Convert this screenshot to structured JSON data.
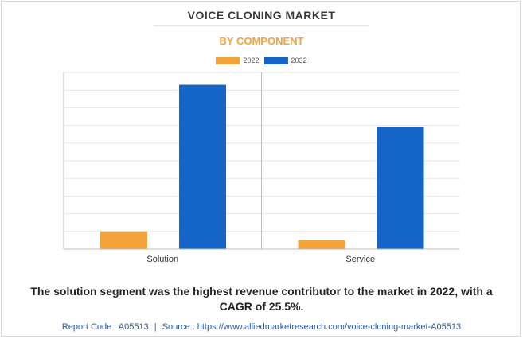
{
  "header": {
    "title": "VOICE CLONING MARKET",
    "subtitle": "BY COMPONENT"
  },
  "colors": {
    "2022": "#f2a33a",
    "2032": "#1565c8",
    "grid": "#e6e6e6",
    "axis": "#bdbdbd"
  },
  "chart_data": {
    "type": "bar",
    "categories": [
      "Solution",
      "Service"
    ],
    "series": [
      {
        "name": "2022",
        "values": [
          1.0,
          0.5
        ]
      },
      {
        "name": "2032",
        "values": [
          9.3,
          6.9
        ]
      }
    ],
    "ylim": [
      0,
      10
    ],
    "grid": true,
    "legend": "top-center"
  },
  "caption": "The solution segment was the highest revenue contributor to the market in 2022, with a CAGR of 25.5%.",
  "footer": {
    "report_code": "Report Code : A05513",
    "separator": "|",
    "source": "Source : https://www.alliedmarketresearch.com/voice-cloning-market-A05513"
  }
}
